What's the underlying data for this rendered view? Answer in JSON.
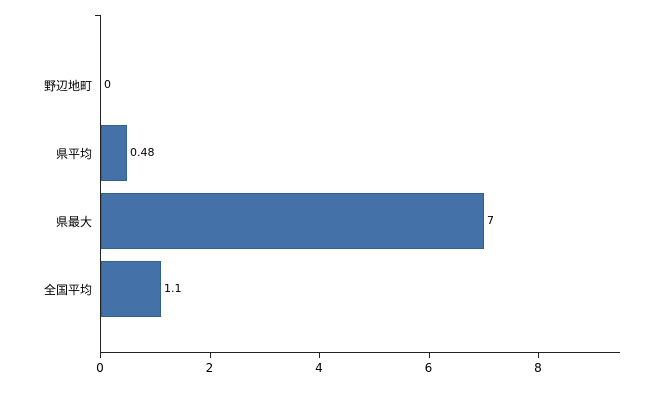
{
  "chart_data": {
    "type": "bar",
    "orientation": "horizontal",
    "title": "",
    "categories": [
      "野辺地町",
      "県平均",
      "県最大",
      "全国平均"
    ],
    "values": [
      0,
      0.48,
      7,
      1.1
    ],
    "value_labels": [
      "0",
      "0.48",
      "7",
      "1.1"
    ],
    "xlim": [
      0,
      8
    ],
    "x_ticks": [
      0,
      2,
      4,
      6,
      8
    ],
    "x_tick_labels": [
      "0",
      "2",
      "4",
      "6",
      "8"
    ],
    "bar_color": "#4472a8",
    "bar_border_color": "#35618f",
    "axis_color": "#222222",
    "grid": false,
    "legend": false
  }
}
